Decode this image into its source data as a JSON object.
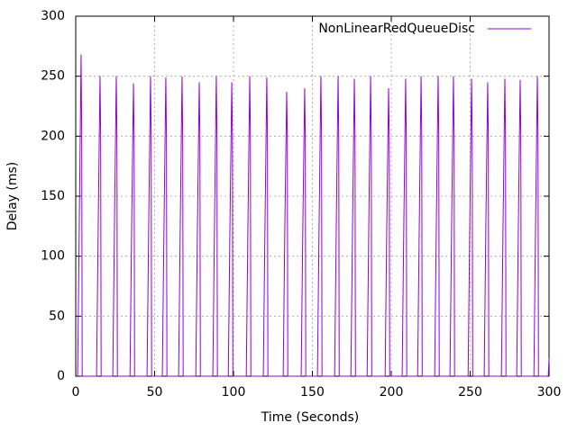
{
  "chart_data": {
    "type": "line",
    "xlabel": "Time (Seconds)",
    "ylabel": "Delay (ms)",
    "xlim": [
      0,
      300
    ],
    "ylim": [
      0,
      300
    ],
    "xticks": [
      0,
      50,
      100,
      150,
      200,
      250,
      300
    ],
    "yticks": [
      0,
      50,
      100,
      150,
      200,
      250,
      300
    ],
    "grid": true,
    "legend": "top-right",
    "x": [
      1.2,
      2.2,
      3.4,
      3.8,
      4.1,
      13.2,
      14.2,
      15.4,
      15.8,
      16.1,
      23.5,
      24.5,
      25.7,
      26.1,
      26.4,
      34.4,
      35.4,
      36.6,
      37,
      37.3,
      45.2,
      46.2,
      47.4,
      47.8,
      48.1,
      54.9,
      55.9,
      57.1,
      57.5,
      57.8,
      65.2,
      66.2,
      67.4,
      67.8,
      68.1,
      76.1,
      77.1,
      78.3,
      78.7,
      79,
      86.9,
      87.9,
      89.1,
      89.5,
      89.8,
      96.7,
      97.7,
      98.9,
      99.3,
      99.6,
      108.1,
      109.1,
      110.3,
      110.7,
      111,
      118.9,
      119.9,
      121.1,
      121.5,
      121.8,
      131.5,
      132.5,
      133.7,
      134.1,
      134.4,
      142.9,
      143.9,
      145.1,
      145.5,
      145.8,
      153.2,
      154.2,
      155.4,
      155.8,
      156.1,
      164.1,
      165.1,
      166.3,
      166.7,
      167,
      174.4,
      175.4,
      176.6,
      177,
      177.3,
      184.7,
      185.7,
      186.9,
      187.3,
      187.6,
      196.1,
      197.1,
      198.3,
      198.7,
      199,
      206.9,
      207.9,
      209.1,
      209.5,
      209.8,
      216.7,
      217.7,
      218.9,
      219.3,
      219.6,
      227.5,
      228.5,
      229.7,
      230.1,
      230.4,
      237.2,
      238.2,
      239.4,
      239.8,
      240.1,
      248.7,
      249.7,
      250.9,
      251.3,
      251.6,
      258.9,
      259.9,
      261.1,
      261.5,
      261.8,
      269.8,
      270.8,
      272,
      272.4,
      272.7,
      279.5,
      280.5,
      281.7,
      282.1,
      282.4,
      290.4,
      291.4,
      292.6,
      293,
      293.3,
      299.5,
      300
    ],
    "series": [
      {
        "name": "NonLinearRedQueueDisc",
        "color": "#9400d3",
        "values": [
          0,
          120,
          268,
          200,
          0,
          0,
          120,
          250,
          200,
          0,
          0,
          120,
          250,
          200,
          0,
          0,
          120,
          244,
          200,
          0,
          0,
          120,
          250,
          200,
          0,
          0,
          120,
          249,
          200,
          0,
          0,
          120,
          250,
          200,
          0,
          0,
          120,
          245,
          200,
          0,
          0,
          120,
          250,
          200,
          0,
          0,
          120,
          245,
          200,
          0,
          0,
          120,
          250,
          200,
          0,
          0,
          120,
          249,
          200,
          0,
          0,
          120,
          237,
          200,
          0,
          0,
          120,
          240,
          200,
          0,
          0,
          120,
          250,
          200,
          0,
          0,
          120,
          250,
          200,
          0,
          0,
          120,
          248,
          200,
          0,
          0,
          120,
          250,
          200,
          0,
          0,
          120,
          240,
          200,
          0,
          0,
          120,
          248,
          200,
          0,
          0,
          120,
          250,
          200,
          0,
          0,
          120,
          250,
          200,
          0,
          0,
          120,
          250,
          200,
          0,
          0,
          120,
          248,
          200,
          0,
          0,
          120,
          245,
          200,
          0,
          0,
          120,
          248,
          200,
          0,
          0,
          120,
          247,
          200,
          0,
          0,
          120,
          250,
          200,
          0,
          0,
          15
        ]
      }
    ]
  }
}
